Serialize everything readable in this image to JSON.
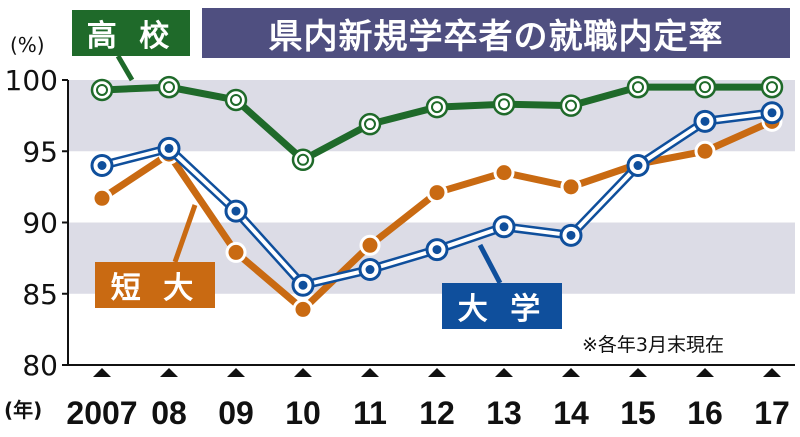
{
  "chart_data": {
    "type": "line",
    "title": "県内新規学卒者の就職内定率",
    "ylabel": "(%)",
    "x_unit": "(年)",
    "categories": [
      "2007",
      "08",
      "09",
      "10",
      "11",
      "12",
      "13",
      "14",
      "15",
      "16",
      "17"
    ],
    "ylim": [
      80,
      100
    ],
    "yticks": [
      80,
      85,
      90,
      95,
      100
    ],
    "series": [
      {
        "name": "高 校",
        "color": "#1f6a2a",
        "values": [
          99.3,
          99.5,
          98.6,
          94.4,
          96.9,
          98.1,
          98.3,
          98.2,
          99.5,
          99.5,
          99.5
        ]
      },
      {
        "name": "大 学",
        "color": "#0f4f9c",
        "values": [
          94.0,
          95.2,
          90.8,
          85.6,
          86.7,
          88.1,
          89.7,
          89.1,
          94.0,
          97.1,
          97.7
        ]
      },
      {
        "name": "短 大",
        "color": "#c96a12",
        "values": [
          91.7,
          94.8,
          87.9,
          83.9,
          88.4,
          92.1,
          93.5,
          92.5,
          94.1,
          95.0,
          97.1
        ]
      }
    ],
    "grid_bands": [
      [
        85,
        90
      ],
      [
        95,
        100
      ]
    ],
    "note": "※各年3月末現在"
  }
}
